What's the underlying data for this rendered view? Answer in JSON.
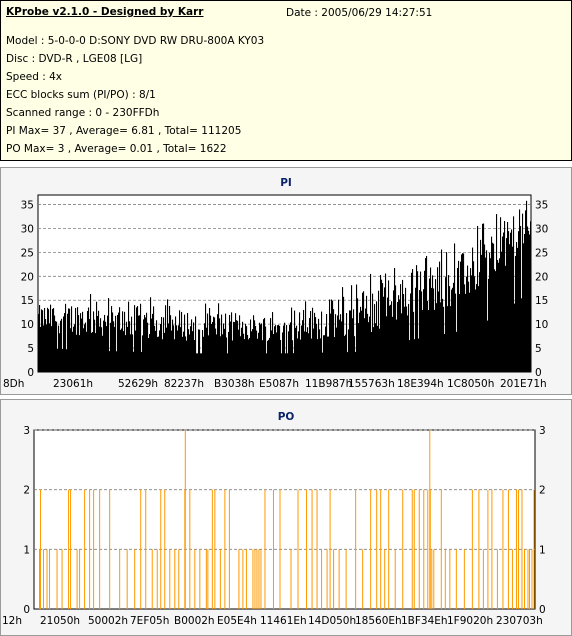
{
  "header": {
    "title": "KProbe v2.1.0 - Designed by Karr",
    "date": "Date : 2005/06/29 14:27:51",
    "lines": [
      "Model : 5-0-0-0 D:SONY    DVD RW DRU-800A  KY03",
      "Disc : DVD-R , LGE08 [LG]",
      "Speed : 4x",
      "ECC blocks sum (PI/PO) : 8/1",
      "Scanned range : 0 - 230FFDh",
      "PI Max= 37 , Average= 6.81 , Total= 111205",
      "PO Max= 3 , Average= 0.01 , Total= 1622"
    ]
  },
  "colors": {
    "pi_bar": "#000000",
    "po_bar": "#ff9900",
    "plot_bg": "#ffffff",
    "panel_bg": "#f5f5f5",
    "title_color": "#0a246a",
    "grid": "#808080"
  },
  "chart_data": [
    {
      "type": "bar",
      "title": "PI",
      "ylim": [
        0,
        37
      ],
      "yticks": [
        0,
        5,
        10,
        15,
        20,
        25,
        30,
        35
      ],
      "xticks": [
        "8Dh",
        "23061h",
        "52629h",
        "82237h",
        "B3038h",
        "E5087h",
        "11B987h",
        "155763h",
        "18E394h",
        "1C8050h",
        "201E71h"
      ],
      "grid": "horizontal dashed",
      "profile": [
        {
          "pos": 0.0,
          "base": 8.5,
          "peak": 14
        },
        {
          "pos": 0.1,
          "base": 7.5,
          "peak": 15
        },
        {
          "pos": 0.3,
          "base": 6.5,
          "peak": 13
        },
        {
          "pos": 0.5,
          "base": 6.5,
          "peak": 12
        },
        {
          "pos": 0.65,
          "base": 7.0,
          "peak": 17
        },
        {
          "pos": 0.75,
          "base": 11.0,
          "peak": 21
        },
        {
          "pos": 0.85,
          "base": 14.0,
          "peak": 24
        },
        {
          "pos": 0.93,
          "base": 19.0,
          "peak": 30
        },
        {
          "pos": 1.0,
          "base": 28.0,
          "peak": 37
        }
      ],
      "max": 37,
      "average": 6.81
    },
    {
      "type": "bar",
      "title": "PO",
      "ylim": [
        0,
        3
      ],
      "yticks": [
        0,
        1,
        2,
        3
      ],
      "xticks": [
        "12h",
        "21050h",
        "50002h",
        "7EF05h",
        "B0002h",
        "E05E4h",
        "11461Eh",
        "14D050h",
        "18560Eh",
        "1BF34Eh",
        "1F9020h",
        "230703h"
      ],
      "grid": "horizontal dashed",
      "spikes": [
        {
          "pos": 0.01,
          "value": 1
        },
        {
          "pos": 0.012,
          "value": 2
        },
        {
          "pos": 0.018,
          "value": 1
        },
        {
          "pos": 0.025,
          "value": 1
        },
        {
          "pos": 0.03,
          "value": 1
        },
        {
          "pos": 0.045,
          "value": 1
        },
        {
          "pos": 0.055,
          "value": 1
        },
        {
          "pos": 0.068,
          "value": 2
        },
        {
          "pos": 0.072,
          "value": 2
        },
        {
          "pos": 0.085,
          "value": 1
        },
        {
          "pos": 0.09,
          "value": 1
        },
        {
          "pos": 0.1,
          "value": 2
        },
        {
          "pos": 0.11,
          "value": 2
        },
        {
          "pos": 0.118,
          "value": 2
        },
        {
          "pos": 0.13,
          "value": 2
        },
        {
          "pos": 0.15,
          "value": 2
        },
        {
          "pos": 0.17,
          "value": 1
        },
        {
          "pos": 0.185,
          "value": 1
        },
        {
          "pos": 0.2,
          "value": 1
        },
        {
          "pos": 0.212,
          "value": 2
        },
        {
          "pos": 0.222,
          "value": 2
        },
        {
          "pos": 0.235,
          "value": 1
        },
        {
          "pos": 0.245,
          "value": 1
        },
        {
          "pos": 0.252,
          "value": 2
        },
        {
          "pos": 0.26,
          "value": 2
        },
        {
          "pos": 0.27,
          "value": 1
        },
        {
          "pos": 0.28,
          "value": 1
        },
        {
          "pos": 0.288,
          "value": 1
        },
        {
          "pos": 0.3,
          "value": 2
        },
        {
          "pos": 0.31,
          "value": 2
        },
        {
          "pos": 0.32,
          "value": 1
        },
        {
          "pos": 0.33,
          "value": 1
        },
        {
          "pos": 0.343,
          "value": 1
        },
        {
          "pos": 0.346,
          "value": 1
        },
        {
          "pos": 0.355,
          "value": 2
        },
        {
          "pos": 0.36,
          "value": 2
        },
        {
          "pos": 0.371,
          "value": 1
        },
        {
          "pos": 0.38,
          "value": 2
        },
        {
          "pos": 0.389,
          "value": 2
        },
        {
          "pos": 0.408,
          "value": 1
        },
        {
          "pos": 0.416,
          "value": 1
        },
        {
          "pos": 0.423,
          "value": 1
        },
        {
          "pos": 0.436,
          "value": 1
        },
        {
          "pos": 0.44,
          "value": 1
        },
        {
          "pos": 0.444,
          "value": 1
        },
        {
          "pos": 0.448,
          "value": 1
        },
        {
          "pos": 0.452,
          "value": 1
        },
        {
          "pos": 0.46,
          "value": 2
        },
        {
          "pos": 0.477,
          "value": 2
        },
        {
          "pos": 0.49,
          "value": 2
        },
        {
          "pos": 0.512,
          "value": 1
        },
        {
          "pos": 0.526,
          "value": 2
        },
        {
          "pos": 0.543,
          "value": 2
        },
        {
          "pos": 0.554,
          "value": 2
        },
        {
          "pos": 0.564,
          "value": 2
        },
        {
          "pos": 0.573,
          "value": 1
        },
        {
          "pos": 0.584,
          "value": 1
        },
        {
          "pos": 0.59,
          "value": 2
        },
        {
          "pos": 0.597,
          "value": 1
        },
        {
          "pos": 0.608,
          "value": 1
        },
        {
          "pos": 0.622,
          "value": 1
        },
        {
          "pos": 0.641,
          "value": 2
        },
        {
          "pos": 0.655,
          "value": 1
        },
        {
          "pos": 0.671,
          "value": 2
        },
        {
          "pos": 0.683,
          "value": 2
        },
        {
          "pos": 0.691,
          "value": 2
        },
        {
          "pos": 0.699,
          "value": 1
        },
        {
          "pos": 0.707,
          "value": 2
        },
        {
          "pos": 0.72,
          "value": 1
        },
        {
          "pos": 0.735,
          "value": 2
        },
        {
          "pos": 0.754,
          "value": 2
        },
        {
          "pos": 0.758,
          "value": 2
        },
        {
          "pos": 0.768,
          "value": 2
        },
        {
          "pos": 0.777,
          "value": 2
        },
        {
          "pos": 0.785,
          "value": 2
        },
        {
          "pos": 0.79,
          "value": 2
        },
        {
          "pos": 0.793,
          "value": 1
        },
        {
          "pos": 0.797,
          "value": 1
        },
        {
          "pos": 0.812,
          "value": 2
        },
        {
          "pos": 0.82,
          "value": 1
        },
        {
          "pos": 0.829,
          "value": 1
        },
        {
          "pos": 0.842,
          "value": 1
        },
        {
          "pos": 0.858,
          "value": 1
        },
        {
          "pos": 0.874,
          "value": 2
        },
        {
          "pos": 0.887,
          "value": 2
        },
        {
          "pos": 0.896,
          "value": 1
        },
        {
          "pos": 0.905,
          "value": 2
        },
        {
          "pos": 0.913,
          "value": 2
        },
        {
          "pos": 0.924,
          "value": 1
        },
        {
          "pos": 0.935,
          "value": 2
        },
        {
          "pos": 0.946,
          "value": 2
        },
        {
          "pos": 0.954,
          "value": 1
        },
        {
          "pos": 0.962,
          "value": 2
        },
        {
          "pos": 0.966,
          "value": 2
        },
        {
          "pos": 0.973,
          "value": 2
        },
        {
          "pos": 0.978,
          "value": 1
        },
        {
          "pos": 0.985,
          "value": 1
        },
        {
          "pos": 0.988,
          "value": 1
        },
        {
          "pos": 0.993,
          "value": 1
        },
        {
          "pos": 0.997,
          "value": 2
        }
      ],
      "spikes_max": [
        {
          "pos": 0.301,
          "value": 3
        },
        {
          "pos": 0.789,
          "value": 3
        }
      ],
      "max": 3,
      "average": 0.01
    }
  ]
}
